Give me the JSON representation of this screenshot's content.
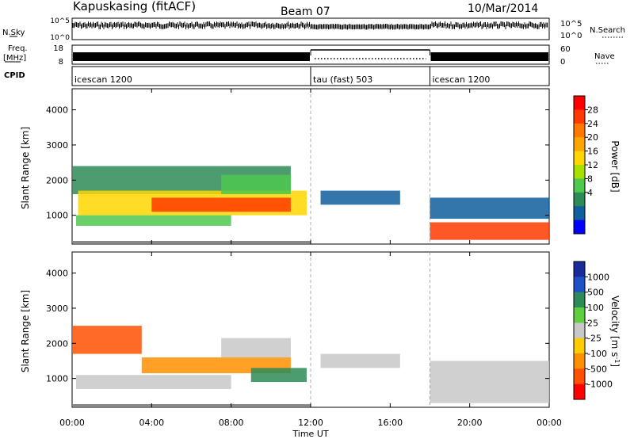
{
  "header": {
    "station": "Kapuskasing (fitACF)",
    "beam": "Beam 07",
    "date": "10/Mar/2014"
  },
  "side_labels": {
    "nsky": "N.Sky",
    "freq_line1": "Freq.",
    "freq_line2": "[MHz]",
    "cpid": "CPID",
    "nsearch": "N.Search",
    "nave": "Nave"
  },
  "nsky_panel": {
    "left_ticks": [
      "10^5",
      "10^0"
    ],
    "right_ticks": [
      "10^5",
      "10^0"
    ]
  },
  "freq_panel": {
    "left_ticks": [
      "18",
      "8"
    ],
    "right_ticks": [
      "60",
      "0"
    ]
  },
  "cpid_segments": [
    {
      "label": "icescan 1200",
      "start_hour": 0,
      "end_hour": 12
    },
    {
      "label": "tau (fast) 503",
      "start_hour": 12,
      "end_hour": 18
    },
    {
      "label": "icescan 1200",
      "start_hour": 18,
      "end_hour": 24
    }
  ],
  "power_panel": {
    "ylabel": "Slant Range [km]",
    "colorbar_label": "Power [dB]",
    "colorbar_ticks": [
      "28",
      "24",
      "20",
      "16",
      "12",
      "8",
      "4"
    ],
    "colorbar_colors": [
      "#ff0000",
      "#ff3a00",
      "#ff7800",
      "#ffa500",
      "#ffd700",
      "#a8e000",
      "#4fc84f",
      "#2e8b57",
      "#0f5e9e",
      "#0000ff"
    ]
  },
  "velocity_panel": {
    "ylabel": "Slant Range [km]",
    "colorbar_label": "Velocity [m s^-1]",
    "colorbar_ticks": [
      "1000",
      "500",
      "100",
      "25",
      "-25",
      "-100",
      "-500",
      "-1000"
    ],
    "colorbar_colors": [
      "#1a2a9a",
      "#1e50c8",
      "#2e8b57",
      "#5fcf40",
      "#c8c8c8",
      "#ffcc00",
      "#ff9000",
      "#ff5000",
      "#ff0000"
    ]
  },
  "chart_data": {
    "type": "heatmap",
    "xlabel": "Time UT",
    "x_ticks": [
      "00:00",
      "04:00",
      "08:00",
      "12:00",
      "16:00",
      "20:00",
      "00:00"
    ],
    "xlim_hours": [
      0,
      24
    ],
    "y_ticks": [
      1000,
      2000,
      3000,
      4000
    ],
    "ylim_km": [
      180,
      4600
    ],
    "mode_boundaries_hours": [
      12,
      18
    ],
    "power_regions": [
      {
        "t0": 0.0,
        "t1": 11.0,
        "r0": 1600,
        "r1": 2400,
        "value_db": 8
      },
      {
        "t0": 0.3,
        "t1": 11.8,
        "r0": 1000,
        "r1": 1700,
        "value_db": 18
      },
      {
        "t0": 4.0,
        "t1": 11.0,
        "r0": 1100,
        "r1": 1500,
        "value_db": 26
      },
      {
        "t0": 7.5,
        "t1": 11.0,
        "r0": 1600,
        "r1": 2150,
        "value_db": 12
      },
      {
        "t0": 0.2,
        "t1": 8.0,
        "r0": 700,
        "r1": 1000,
        "value_db": 10
      },
      {
        "t0": 12.5,
        "t1": 16.5,
        "r0": 1300,
        "r1": 1700,
        "value_db": 4
      },
      {
        "t0": 18.0,
        "t1": 24.0,
        "r0": 900,
        "r1": 1500,
        "value_db": 6
      },
      {
        "t0": 18.0,
        "t1": 24.0,
        "r0": 300,
        "r1": 800,
        "value_db": 28
      }
    ],
    "velocity_regions": [
      {
        "t0": 0.0,
        "t1": 3.5,
        "r0": 1700,
        "r1": 2500,
        "value_ms": -300
      },
      {
        "t0": 3.5,
        "t1": 11.0,
        "r0": 1150,
        "r1": 1600,
        "value_ms": -150
      },
      {
        "t0": 7.5,
        "t1": 11.0,
        "r0": 1600,
        "r1": 2150,
        "value_ms": 0
      },
      {
        "t0": 0.2,
        "t1": 8.0,
        "r0": 700,
        "r1": 1100,
        "value_ms": 0
      },
      {
        "t0": 9.0,
        "t1": 11.8,
        "r0": 900,
        "r1": 1300,
        "value_ms": 100
      },
      {
        "t0": 12.5,
        "t1": 16.5,
        "r0": 1300,
        "r1": 1700,
        "value_ms": 0
      },
      {
        "t0": 18.0,
        "t1": 24.0,
        "r0": 300,
        "r1": 1500,
        "value_ms": 0
      }
    ]
  }
}
